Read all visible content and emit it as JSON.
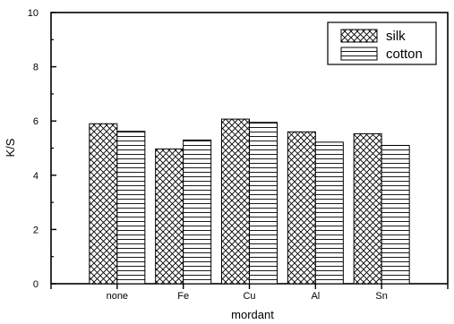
{
  "chart_data": {
    "type": "bar",
    "title": "",
    "xlabel": "mordant",
    "ylabel": "K/S",
    "categories": [
      "none",
      "Fe",
      "Cu",
      "Al",
      "Sn"
    ],
    "series": [
      {
        "name": "silk",
        "values": [
          5.9,
          4.97,
          6.07,
          5.6,
          5.53
        ],
        "pattern": "crosshatch"
      },
      {
        "name": "cotton",
        "values": [
          5.62,
          5.3,
          5.95,
          5.22,
          5.1
        ],
        "pattern": "horizontal-lines"
      }
    ],
    "ylim": [
      0,
      10
    ],
    "yticks": [
      0,
      2,
      4,
      6,
      8,
      10
    ],
    "grid": false,
    "legend_position": "top-right",
    "colors": {
      "bar_stroke": "#000000",
      "background": "#ffffff"
    }
  }
}
